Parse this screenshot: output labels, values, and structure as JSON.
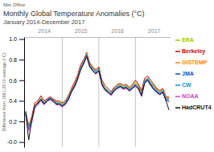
{
  "chart_data": {
    "type": "line",
    "title": "Monthly Global Temperature Anomalies (°C)",
    "subtitle": "January 2014-December 2017",
    "ylabel": "Difference from 1981-2010 average (°C)",
    "annotations": [
      "Met Office"
    ],
    "categories": [
      null,
      null,
      null,
      null,
      null,
      null,
      "2014",
      null,
      null,
      null,
      null,
      null,
      null,
      null,
      null,
      null,
      null,
      null,
      "2015",
      null,
      null,
      null,
      null,
      null,
      null,
      null,
      null,
      null,
      null,
      null,
      "2016",
      null,
      null,
      null,
      null,
      null,
      null,
      null,
      null,
      null,
      null,
      null,
      "2017",
      null,
      null,
      null,
      null,
      null
    ],
    "ylim": [
      -0.05,
      1.02
    ],
    "yticks": [
      {
        "value": 0.0,
        "label": "-0.0"
      },
      0.2,
      0.4,
      0.6,
      0.8,
      {
        "value": 1.0,
        "label": "1.0"
      }
    ],
    "grid": false,
    "legend": "right",
    "series": [
      {
        "name": "ERA",
        "color": "#99cc00",
        "values": [
          0.28,
          0.17,
          0.21,
          0.35,
          0.38,
          0.43,
          0.39,
          0.4,
          0.42,
          0.4,
          0.38,
          0.39,
          0.37,
          0.39,
          0.43,
          0.5,
          0.55,
          0.62,
          0.72,
          0.78,
          0.85,
          0.75,
          0.72,
          0.68,
          0.72,
          0.58,
          0.53,
          0.5,
          0.48,
          0.52,
          0.55,
          0.56,
          0.54,
          0.55,
          0.52,
          0.55,
          0.58,
          0.55,
          0.48,
          0.6,
          0.62,
          0.58,
          0.55,
          0.5,
          0.48,
          0.5,
          0.42,
          0.45
        ]
      },
      {
        "name": "Berkeley",
        "color": "#cc0000",
        "values": [
          0.3,
          0.15,
          0.25,
          0.38,
          0.4,
          0.45,
          0.4,
          0.42,
          0.44,
          0.42,
          0.4,
          0.4,
          0.38,
          0.4,
          0.45,
          0.52,
          0.58,
          0.65,
          0.75,
          0.8,
          0.87,
          0.77,
          0.73,
          0.7,
          0.73,
          0.6,
          0.55,
          0.52,
          0.49,
          0.53,
          0.56,
          0.57,
          0.55,
          0.56,
          0.53,
          0.56,
          0.6,
          0.56,
          0.5,
          0.62,
          0.64,
          0.6,
          0.56,
          0.52,
          0.5,
          0.52,
          0.44,
          0.43
        ]
      },
      {
        "name": "GISTEMP",
        "color": "#ff8800",
        "values": [
          0.28,
          0.14,
          0.23,
          0.36,
          0.39,
          0.42,
          0.38,
          0.41,
          0.43,
          0.41,
          0.39,
          0.38,
          0.36,
          0.38,
          0.44,
          0.51,
          0.56,
          0.63,
          0.73,
          0.79,
          0.86,
          0.76,
          0.72,
          0.69,
          0.71,
          0.57,
          0.52,
          0.5,
          0.47,
          0.51,
          0.54,
          0.55,
          0.53,
          0.54,
          0.51,
          0.54,
          0.57,
          0.54,
          0.47,
          0.59,
          0.62,
          0.57,
          0.54,
          0.51,
          0.49,
          0.51,
          0.43,
          0.42
        ]
      },
      {
        "name": "JMA",
        "color": "#0055cc",
        "values": [
          0.27,
          0.12,
          0.2,
          0.34,
          0.37,
          0.41,
          0.37,
          0.4,
          0.42,
          0.4,
          0.37,
          0.37,
          0.35,
          0.37,
          0.42,
          0.49,
          0.54,
          0.61,
          0.71,
          0.77,
          0.84,
          0.74,
          0.7,
          0.67,
          0.7,
          0.56,
          0.51,
          0.49,
          0.46,
          0.5,
          0.53,
          0.54,
          0.52,
          0.53,
          0.5,
          0.53,
          0.55,
          0.52,
          0.45,
          0.58,
          0.61,
          0.56,
          0.52,
          0.49,
          0.47,
          0.49,
          0.41,
          0.4
        ]
      },
      {
        "name": "CW",
        "color": "#0099ee",
        "values": [
          0.29,
          0.13,
          0.22,
          0.35,
          0.38,
          0.42,
          0.38,
          0.41,
          0.43,
          0.41,
          0.38,
          0.38,
          0.36,
          0.38,
          0.43,
          0.5,
          0.55,
          0.62,
          0.72,
          0.78,
          0.85,
          0.75,
          0.71,
          0.68,
          0.71,
          0.57,
          0.52,
          0.5,
          0.47,
          0.51,
          0.54,
          0.55,
          0.53,
          0.54,
          0.51,
          0.54,
          0.56,
          0.53,
          0.46,
          0.59,
          0.62,
          0.57,
          0.53,
          0.5,
          0.48,
          0.5,
          0.42,
          0.41
        ]
      },
      {
        "name": "NOAA",
        "color": "#cc44cc",
        "values": [
          0.26,
          0.11,
          0.19,
          0.33,
          0.36,
          0.4,
          0.36,
          0.39,
          0.41,
          0.39,
          0.36,
          0.36,
          0.34,
          0.36,
          0.41,
          0.48,
          0.53,
          0.6,
          0.7,
          0.76,
          0.83,
          0.73,
          0.69,
          0.66,
          0.69,
          0.55,
          0.5,
          0.48,
          0.45,
          0.49,
          0.52,
          0.53,
          0.51,
          0.52,
          0.49,
          0.52,
          0.54,
          0.51,
          0.44,
          0.57,
          0.6,
          0.55,
          0.51,
          0.48,
          0.46,
          0.48,
          0.4,
          0.39
        ]
      },
      {
        "name": "HadCRUT4",
        "color": "#111111",
        "values": [
          0.29,
          0.02,
          0.21,
          0.35,
          0.38,
          0.41,
          0.37,
          0.4,
          0.42,
          0.4,
          0.37,
          0.37,
          0.35,
          0.37,
          0.41,
          0.49,
          0.54,
          0.61,
          0.7,
          0.76,
          0.83,
          0.73,
          0.69,
          0.66,
          0.69,
          0.56,
          0.51,
          0.48,
          0.46,
          0.5,
          0.52,
          0.54,
          0.52,
          0.53,
          0.5,
          0.52,
          0.55,
          0.52,
          0.45,
          0.57,
          0.6,
          0.55,
          0.51,
          0.48,
          0.46,
          0.48,
          0.4,
          0.31
        ]
      }
    ]
  }
}
